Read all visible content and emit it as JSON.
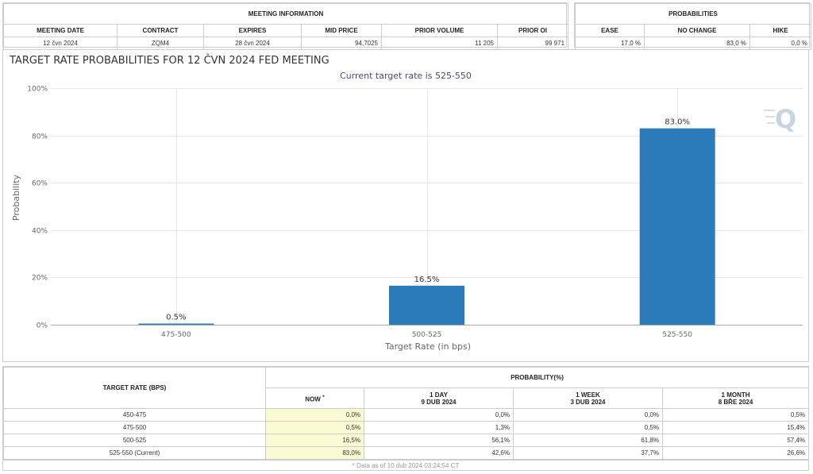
{
  "meeting_info": {
    "group_title": "MEETING INFORMATION",
    "headers": [
      "MEETING DATE",
      "CONTRACT",
      "EXPIRES",
      "MID PRICE",
      "PRIOR VOLUME",
      "PRIOR OI"
    ],
    "values": [
      "12 čvn 2024",
      "ZQM4",
      "28 čvn 2024",
      "94,7025",
      "11 205",
      "99 971"
    ]
  },
  "probabilities": {
    "group_title": "PROBABILITIES",
    "headers": [
      "EASE",
      "NO CHANGE",
      "HIKE"
    ],
    "values": [
      "17,0 %",
      "83,0 %",
      "0,0 %"
    ]
  },
  "chart_data": {
    "type": "bar",
    "title": "TARGET RATE PROBABILITIES FOR 12 ČVN 2024 FED MEETING",
    "subtitle": "Current target rate is 525-550",
    "xlabel": "Target Rate (in bps)",
    "ylabel": "Probability",
    "categories": [
      "475-500",
      "500-525",
      "525-550"
    ],
    "values": [
      0.5,
      16.5,
      83.0
    ],
    "data_labels": [
      "0.5%",
      "16.5%",
      "83.0%"
    ],
    "ylim": [
      0,
      100
    ],
    "yticks": [
      0,
      20,
      40,
      60,
      80,
      100
    ],
    "ytick_labels": [
      "0%",
      "20%",
      "40%",
      "60%",
      "80%",
      "100%"
    ],
    "grid": true,
    "bar_color": "#2b7bba",
    "grid_color": "#e6e6e6"
  },
  "history": {
    "rate_header": "TARGET RATE (BPS)",
    "prob_header": "PROBABILITY(%)",
    "columns": [
      {
        "label": "NOW",
        "marker": "*",
        "date": ""
      },
      {
        "label": "1 DAY",
        "date": "9 DUB 2024"
      },
      {
        "label": "1 WEEK",
        "date": "3 DUB 2024"
      },
      {
        "label": "1 MONTH",
        "date": "8 BŘE 2024"
      }
    ],
    "rows": [
      {
        "rate": "450-475",
        "values": [
          "0,0%",
          "0,0%",
          "0,0%",
          "0,5%"
        ]
      },
      {
        "rate": "475-500",
        "values": [
          "0,5%",
          "1,3%",
          "0,5%",
          "15,4%"
        ]
      },
      {
        "rate": "500-525",
        "values": [
          "16,5%",
          "56,1%",
          "61,8%",
          "57,4%"
        ]
      },
      {
        "rate": "525-550 (Current)",
        "values": [
          "83,0%",
          "42,6%",
          "37,7%",
          "26,6%"
        ]
      }
    ],
    "footnote": "* Data as of 10 dub 2024 03:24:54 CT"
  },
  "colors": {
    "border": "#cccccc",
    "now_highlight": "#fafad2",
    "watermark": "#c8d4e0"
  },
  "icons": {
    "watermark": "q-logo-icon"
  }
}
